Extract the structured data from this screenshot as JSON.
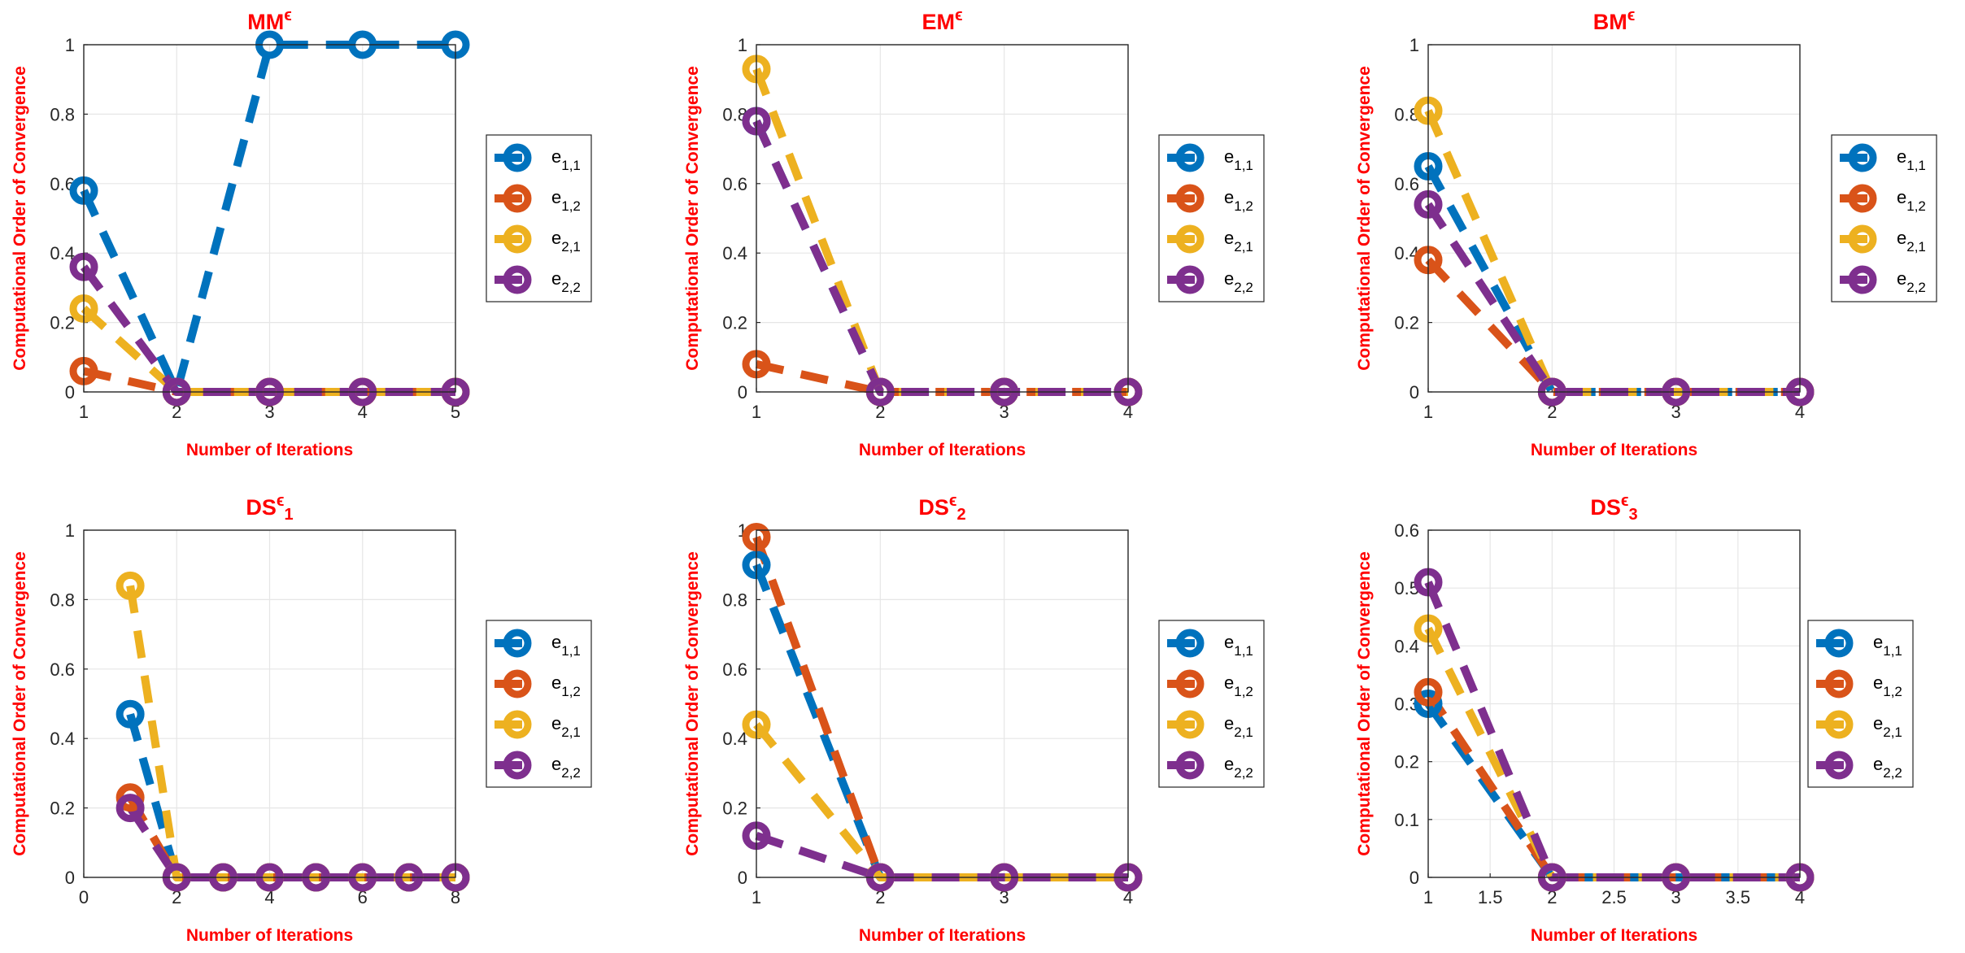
{
  "style": {
    "label_color": "#FF0000",
    "series_colors": [
      "#0072BD",
      "#D95319",
      "#EDB120",
      "#7E2F8E"
    ],
    "line_style": "dashed",
    "marker": "circle",
    "grid": true,
    "legend_location": "east-outside"
  },
  "chart_data": [
    {
      "type": "line",
      "title_base": "MM",
      "title_sup": "ϵ",
      "title_sub": "",
      "xlabel": "Number of Iterations",
      "ylabel": "Computational Order of Convergence",
      "xlim": [
        1,
        5
      ],
      "ylim": [
        0,
        1
      ],
      "xticks": [
        1,
        2,
        3,
        4,
        5
      ],
      "xtick_labels": [
        "1",
        "2",
        "3",
        "4",
        "5"
      ],
      "yticks": [
        0,
        0.2,
        0.4,
        0.6,
        0.8,
        1
      ],
      "ytick_labels": [
        "0",
        "0.2",
        "0.4",
        "0.6",
        "0.8",
        "1"
      ],
      "x": [
        1,
        2,
        3,
        4,
        5
      ],
      "series": [
        {
          "name_base": "e",
          "name_sub": "1,1",
          "values": [
            0.58,
            0,
            1,
            1,
            1
          ]
        },
        {
          "name_base": "e",
          "name_sub": "1,2",
          "values": [
            0.06,
            0,
            0,
            0,
            0
          ]
        },
        {
          "name_base": "e",
          "name_sub": "2,1",
          "values": [
            0.24,
            0,
            0,
            0,
            0
          ]
        },
        {
          "name_base": "e",
          "name_sub": "2,2",
          "values": [
            0.36,
            0,
            0,
            0,
            0
          ]
        }
      ]
    },
    {
      "type": "line",
      "title_base": "EM",
      "title_sup": "ϵ",
      "title_sub": "",
      "xlabel": "Number of Iterations",
      "ylabel": "Computational Order of Convergence",
      "xlim": [
        1,
        4
      ],
      "ylim": [
        0,
        1
      ],
      "xticks": [
        1,
        2,
        3,
        4
      ],
      "xtick_labels": [
        "1",
        "2",
        "3",
        "4"
      ],
      "yticks": [
        0,
        0.2,
        0.4,
        0.6,
        0.8,
        1
      ],
      "ytick_labels": [
        "0",
        "0.2",
        "0.4",
        "0.6",
        "0.8",
        "1"
      ],
      "x": [
        1,
        2,
        3,
        4
      ],
      "series": [
        {
          "name_base": "e",
          "name_sub": "1,1",
          "values": [
            0.78,
            0,
            0,
            0
          ]
        },
        {
          "name_base": "e",
          "name_sub": "1,2",
          "values": [
            0.08,
            0,
            0,
            0
          ]
        },
        {
          "name_base": "e",
          "name_sub": "2,1",
          "values": [
            0.93,
            0,
            0,
            0
          ]
        },
        {
          "name_base": "e",
          "name_sub": "2,2",
          "values": [
            0.78,
            0,
            0,
            0
          ]
        }
      ]
    },
    {
      "type": "line",
      "title_base": "BM",
      "title_sup": "ϵ",
      "title_sub": "",
      "xlabel": "Number of Iterations",
      "ylabel": "Computational Order of Convergence",
      "xlim": [
        1,
        4
      ],
      "ylim": [
        0,
        1
      ],
      "xticks": [
        1,
        2,
        3,
        4
      ],
      "xtick_labels": [
        "1",
        "2",
        "3",
        "4"
      ],
      "yticks": [
        0,
        0.2,
        0.4,
        0.6,
        0.8,
        1
      ],
      "ytick_labels": [
        "0",
        "0.2",
        "0.4",
        "0.6",
        "0.8",
        "1"
      ],
      "x": [
        1,
        2,
        3,
        4
      ],
      "series": [
        {
          "name_base": "e",
          "name_sub": "1,1",
          "values": [
            0.65,
            0,
            0,
            0
          ]
        },
        {
          "name_base": "e",
          "name_sub": "1,2",
          "values": [
            0.38,
            0,
            0,
            0
          ]
        },
        {
          "name_base": "e",
          "name_sub": "2,1",
          "values": [
            0.81,
            0,
            0,
            0
          ]
        },
        {
          "name_base": "e",
          "name_sub": "2,2",
          "values": [
            0.54,
            0,
            0,
            0
          ]
        }
      ]
    },
    {
      "type": "line",
      "title_base": "DS",
      "title_sup": "ϵ",
      "title_sub": "1",
      "xlabel": "Number of Iterations",
      "ylabel": "Computational Order of Convergence",
      "xlim": [
        0,
        8
      ],
      "ylim": [
        0,
        1
      ],
      "xticks": [
        0,
        2,
        4,
        6,
        8
      ],
      "xtick_labels": [
        "0",
        "2",
        "4",
        "6",
        "8"
      ],
      "yticks": [
        0,
        0.2,
        0.4,
        0.6,
        0.8,
        1
      ],
      "ytick_labels": [
        "0",
        "0.2",
        "0.4",
        "0.6",
        "0.8",
        "1"
      ],
      "x": [
        1,
        2,
        3,
        4,
        5,
        6,
        7,
        8
      ],
      "series": [
        {
          "name_base": "e",
          "name_sub": "1,1",
          "values": [
            0.47,
            0,
            0,
            0,
            0,
            0,
            0,
            0
          ]
        },
        {
          "name_base": "e",
          "name_sub": "1,2",
          "values": [
            0.23,
            0,
            0,
            0,
            0,
            0,
            0,
            0
          ]
        },
        {
          "name_base": "e",
          "name_sub": "2,1",
          "values": [
            0.84,
            0,
            0,
            0,
            0,
            0,
            0,
            0
          ]
        },
        {
          "name_base": "e",
          "name_sub": "2,2",
          "values": [
            0.2,
            0,
            0,
            0,
            0,
            0,
            0,
            0
          ]
        }
      ]
    },
    {
      "type": "line",
      "title_base": "DS",
      "title_sup": "ϵ",
      "title_sub": "2",
      "xlabel": "Number of Iterations",
      "ylabel": "Computational Order of Convergence",
      "xlim": [
        1,
        4
      ],
      "ylim": [
        0,
        1
      ],
      "xticks": [
        1,
        2,
        3,
        4
      ],
      "xtick_labels": [
        "1",
        "2",
        "3",
        "4"
      ],
      "yticks": [
        0,
        0.2,
        0.4,
        0.6,
        0.8,
        1
      ],
      "ytick_labels": [
        "0",
        "0.2",
        "0.4",
        "0.6",
        "0.8",
        "1"
      ],
      "x": [
        1,
        2,
        3,
        4
      ],
      "series": [
        {
          "name_base": "e",
          "name_sub": "1,1",
          "values": [
            0.9,
            0,
            0,
            0
          ]
        },
        {
          "name_base": "e",
          "name_sub": "1,2",
          "values": [
            0.98,
            0,
            0,
            0
          ]
        },
        {
          "name_base": "e",
          "name_sub": "2,1",
          "values": [
            0.44,
            0,
            0,
            0
          ]
        },
        {
          "name_base": "e",
          "name_sub": "2,2",
          "values": [
            0.12,
            0,
            0,
            0
          ]
        }
      ]
    },
    {
      "type": "line",
      "title_base": "DS",
      "title_sup": "ϵ",
      "title_sub": "3",
      "xlabel": "Number of Iterations",
      "ylabel": "Computational Order of Convergence",
      "xlim": [
        1,
        4
      ],
      "ylim": [
        0,
        0.6
      ],
      "xticks": [
        1,
        1.5,
        2,
        2.5,
        3,
        3.5,
        4
      ],
      "xtick_labels": [
        "1",
        "1.5",
        "2",
        "2.5",
        "3",
        "3.5",
        "4"
      ],
      "yticks": [
        0,
        0.1,
        0.2,
        0.3,
        0.4,
        0.5,
        0.6
      ],
      "ytick_labels": [
        "0",
        "0.1",
        "0.2",
        "0.3",
        "0.4",
        "0.5",
        "0.6"
      ],
      "x": [
        1,
        2,
        3,
        4
      ],
      "series": [
        {
          "name_base": "e",
          "name_sub": "1,1",
          "values": [
            0.3,
            0,
            0,
            0
          ]
        },
        {
          "name_base": "e",
          "name_sub": "1,2",
          "values": [
            0.32,
            0,
            0,
            0
          ]
        },
        {
          "name_base": "e",
          "name_sub": "2,1",
          "values": [
            0.43,
            0,
            0,
            0
          ]
        },
        {
          "name_base": "e",
          "name_sub": "2,2",
          "values": [
            0.51,
            0,
            0,
            0
          ]
        }
      ]
    }
  ]
}
